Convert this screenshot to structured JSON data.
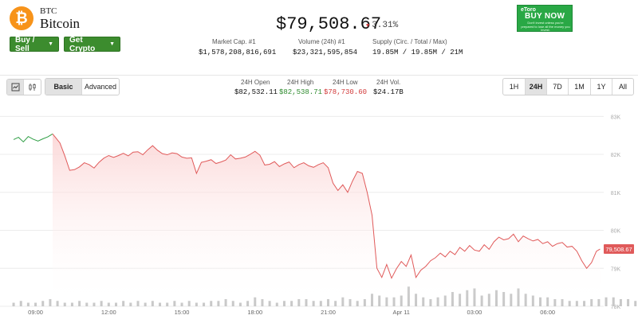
{
  "coin": {
    "icon_name": "bitcoin-icon",
    "icon_glyph": "₿",
    "ticker": "BTC",
    "name": "Bitcoin",
    "price": "$79,508.67",
    "change": "3.31%",
    "change_direction": "down"
  },
  "actions": {
    "buy_sell": "Buy / Sell",
    "get_crypto": "Get Crypto"
  },
  "stats": [
    {
      "label": "Market Cap. #1",
      "value": "$1,578,208,816,691"
    },
    {
      "label": "Volume (24h) #1",
      "value": "$23,321,595,854"
    },
    {
      "label": "Supply (Circ. / Total / Max)",
      "value": "19.85M / 19.85M / 21M"
    }
  ],
  "ad": {
    "logo": "eToro",
    "cta": "BUY NOW",
    "text": "Don't invest unless you're prepared to lose all the money you invest."
  },
  "toolbar": {
    "chart_type_icons": [
      "candlestick-icon",
      "line-chart-icon"
    ],
    "modes": [
      "Basic",
      "Advanced"
    ],
    "active_mode": "Basic"
  },
  "ohlv": [
    {
      "label": "24H Open",
      "value": "$82,532.11",
      "color": "#111111"
    },
    {
      "label": "24H High",
      "value": "$82,538.71",
      "color": "#2e8b2e"
    },
    {
      "label": "24H Low",
      "value": "$78,730.60",
      "color": "#d23b3b"
    },
    {
      "label": "24H Vol.",
      "value": "$24.17B",
      "color": "#111111"
    }
  ],
  "ranges": [
    "1H",
    "24H",
    "7D",
    "1M",
    "1Y",
    "All"
  ],
  "active_range": "24H",
  "chart_data": {
    "type": "line",
    "y_ticks": [
      "83K",
      "82K",
      "81K",
      "80K",
      "79K",
      "78K"
    ],
    "y_tick_values": [
      83000,
      82000,
      81000,
      80000,
      79000,
      78000
    ],
    "ylim": [
      78000,
      83300
    ],
    "x_ticks": [
      "09:00",
      "12:00",
      "15:00",
      "18:00",
      "21:00",
      "Apr 11",
      "03:00",
      "06:00"
    ],
    "x_tick_positions": [
      9,
      12,
      15,
      18,
      21,
      24,
      27,
      30
    ],
    "xlim": [
      8,
      32.3
    ],
    "last_price_label": "79,508.67",
    "colors": {
      "up": "#2e9e44",
      "down": "#e05a5a",
      "fill": "#fbdada"
    },
    "series": [
      {
        "values": [
          [
            8.1,
            82390
          ],
          [
            8.3,
            82450
          ],
          [
            8.5,
            82330
          ],
          [
            8.7,
            82470
          ],
          [
            8.9,
            82400
          ],
          [
            9.1,
            82350
          ],
          [
            9.3,
            82410
          ],
          [
            9.5,
            82460
          ],
          [
            9.7,
            82540
          ],
          [
            9.8,
            82460
          ],
          [
            10.0,
            82300
          ],
          [
            10.2,
            81960
          ],
          [
            10.4,
            81580
          ],
          [
            10.6,
            81600
          ],
          [
            10.8,
            81670
          ],
          [
            11.0,
            81780
          ],
          [
            11.2,
            81730
          ],
          [
            11.4,
            81640
          ],
          [
            11.6,
            81790
          ],
          [
            11.8,
            81900
          ],
          [
            12.0,
            81970
          ],
          [
            12.2,
            81920
          ],
          [
            12.4,
            81970
          ],
          [
            12.6,
            82030
          ],
          [
            12.8,
            81960
          ],
          [
            13.0,
            82060
          ],
          [
            13.2,
            82070
          ],
          [
            13.4,
            81990
          ],
          [
            13.6,
            82120
          ],
          [
            13.8,
            82230
          ],
          [
            14.0,
            82110
          ],
          [
            14.2,
            82020
          ],
          [
            14.4,
            81990
          ],
          [
            14.6,
            82040
          ],
          [
            14.8,
            82020
          ],
          [
            15.0,
            81930
          ],
          [
            15.2,
            81900
          ],
          [
            15.4,
            81910
          ],
          [
            15.6,
            81500
          ],
          [
            15.8,
            81790
          ],
          [
            16.0,
            81820
          ],
          [
            16.2,
            81860
          ],
          [
            16.4,
            81760
          ],
          [
            16.6,
            81800
          ],
          [
            16.8,
            81850
          ],
          [
            17.0,
            81990
          ],
          [
            17.2,
            81880
          ],
          [
            17.4,
            81900
          ],
          [
            17.6,
            81930
          ],
          [
            17.8,
            82000
          ],
          [
            18.0,
            82080
          ],
          [
            18.2,
            81980
          ],
          [
            18.4,
            81720
          ],
          [
            18.6,
            81740
          ],
          [
            18.8,
            81810
          ],
          [
            19.0,
            81680
          ],
          [
            19.2,
            81750
          ],
          [
            19.4,
            81800
          ],
          [
            19.6,
            81650
          ],
          [
            19.8,
            81730
          ],
          [
            20.0,
            81780
          ],
          [
            20.2,
            81700
          ],
          [
            20.4,
            81660
          ],
          [
            20.6,
            81730
          ],
          [
            20.8,
            81780
          ],
          [
            21.0,
            81650
          ],
          [
            21.2,
            81240
          ],
          [
            21.4,
            81050
          ],
          [
            21.6,
            81200
          ],
          [
            21.8,
            81000
          ],
          [
            22.0,
            81300
          ],
          [
            22.2,
            81550
          ],
          [
            22.4,
            81500
          ],
          [
            22.6,
            81000
          ],
          [
            22.8,
            80400
          ],
          [
            23.0,
            79000
          ],
          [
            23.2,
            78760
          ],
          [
            23.4,
            79100
          ],
          [
            23.6,
            78740
          ],
          [
            23.8,
            78990
          ],
          [
            24.0,
            79180
          ],
          [
            24.2,
            79050
          ],
          [
            24.4,
            79350
          ],
          [
            24.6,
            78760
          ],
          [
            24.8,
            78950
          ],
          [
            25.0,
            79050
          ],
          [
            25.2,
            79200
          ],
          [
            25.4,
            79280
          ],
          [
            25.6,
            79400
          ],
          [
            25.8,
            79300
          ],
          [
            26.0,
            79450
          ],
          [
            26.2,
            79360
          ],
          [
            26.4,
            79550
          ],
          [
            26.6,
            79450
          ],
          [
            26.8,
            79600
          ],
          [
            27.0,
            79480
          ],
          [
            27.2,
            79450
          ],
          [
            27.4,
            79620
          ],
          [
            27.6,
            79500
          ],
          [
            27.8,
            79700
          ],
          [
            28.0,
            79820
          ],
          [
            28.2,
            79750
          ],
          [
            28.4,
            79780
          ],
          [
            28.6,
            79900
          ],
          [
            28.8,
            79700
          ],
          [
            29.0,
            79850
          ],
          [
            29.2,
            79780
          ],
          [
            29.4,
            79720
          ],
          [
            29.6,
            79760
          ],
          [
            29.8,
            79650
          ],
          [
            30.0,
            79700
          ],
          [
            30.2,
            79580
          ],
          [
            30.4,
            79650
          ],
          [
            30.6,
            79680
          ],
          [
            30.8,
            79560
          ],
          [
            31.0,
            79580
          ],
          [
            31.2,
            79450
          ],
          [
            31.4,
            79200
          ],
          [
            31.6,
            79000
          ],
          [
            31.8,
            79150
          ],
          [
            32.0,
            79450
          ],
          [
            32.15,
            79508
          ]
        ]
      }
    ],
    "volume": {
      "x_start": 8.1,
      "x_step": 0.3,
      "values": [
        2,
        3,
        2,
        2,
        3,
        4,
        3,
        2,
        2,
        3,
        2,
        2,
        3,
        2,
        2,
        3,
        2,
        3,
        2,
        3,
        2,
        2,
        3,
        2,
        3,
        2,
        2,
        3,
        3,
        4,
        3,
        2,
        3,
        5,
        4,
        3,
        2,
        3,
        3,
        4,
        4,
        3,
        3,
        4,
        3,
        5,
        4,
        3,
        4,
        7,
        6,
        5,
        5,
        6,
        11,
        7,
        5,
        4,
        5,
        6,
        8,
        7,
        9,
        10,
        6,
        7,
        9,
        8,
        7,
        10,
        7,
        6,
        5,
        5,
        4,
        4,
        3,
        3,
        3,
        4,
        4,
        5,
        5,
        4,
        4,
        3,
        3,
        3,
        4,
        3,
        3,
        4,
        3,
        2,
        3,
        4,
        3,
        3,
        2,
        3,
        3,
        4,
        4,
        3,
        3,
        3,
        4,
        3,
        3,
        4,
        3,
        5,
        5,
        4,
        3,
        3,
        4,
        3,
        3,
        4,
        5,
        3,
        5,
        5,
        8
      ]
    }
  }
}
